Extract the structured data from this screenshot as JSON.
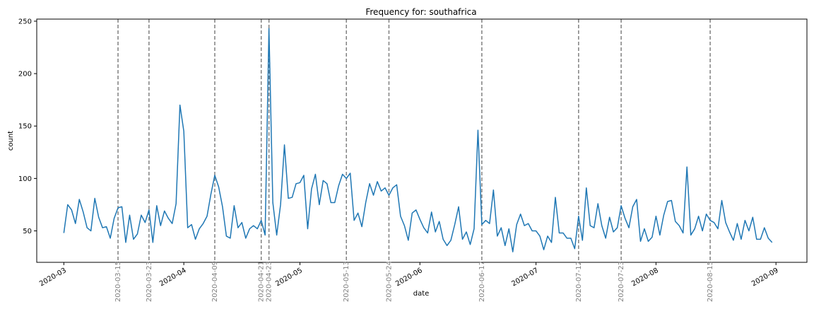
{
  "chart_data": {
    "type": "line",
    "title": "Frequency for: southafrica",
    "xlabel": "date",
    "ylabel": "count",
    "x_ticks": [
      "2020-03",
      "2020-04",
      "2020-05",
      "2020-06",
      "2020-07",
      "2020-08",
      "2020-09"
    ],
    "y_ticks": [
      50,
      100,
      150,
      200,
      250
    ],
    "ylim": [
      20,
      252
    ],
    "xlim": [
      "2020-02-23",
      "2020-09-09"
    ],
    "grid": false,
    "line_color": "#1f77b4",
    "marker_line_color": "#808080",
    "marker_dates": [
      "2020-03-15",
      "2020-03-23",
      "2020-04-09",
      "2020-04-21",
      "2020-04-23",
      "2020-05-13",
      "2020-05-24",
      "2020-06-17",
      "2020-07-12",
      "2020-07-23",
      "2020-08-15"
    ],
    "series": [
      {
        "x_start": "2020-03-01",
        "x_step": "1 day",
        "values": [
          48,
          75,
          70,
          57,
          80,
          68,
          53,
          50,
          81,
          63,
          53,
          54,
          43,
          62,
          72,
          73,
          39,
          65,
          42,
          47,
          65,
          58,
          70,
          39,
          74,
          55,
          69,
          62,
          57,
          76,
          170,
          145,
          53,
          56,
          42,
          52,
          57,
          64,
          85,
          103,
          92,
          73,
          45,
          43,
          74,
          53,
          58,
          43,
          52,
          55,
          52,
          60,
          46,
          243,
          77,
          46,
          75,
          132,
          81,
          82,
          95,
          96,
          103,
          52,
          90,
          104,
          75,
          98,
          95,
          77,
          77,
          93,
          104,
          100,
          105,
          60,
          67,
          54,
          77,
          95,
          84,
          97,
          88,
          91,
          84,
          91,
          94,
          64,
          55,
          41,
          67,
          70,
          61,
          53,
          48,
          68,
          49,
          59,
          42,
          36,
          41,
          56,
          73,
          42,
          49,
          37,
          52,
          146,
          56,
          60,
          57,
          89,
          45,
          53,
          36,
          52,
          30,
          56,
          66,
          55,
          57,
          50,
          50,
          45,
          32,
          45,
          39,
          82,
          48,
          48,
          43,
          43,
          33,
          64,
          41,
          91,
          55,
          53,
          76,
          55,
          43,
          63,
          49,
          53,
          74,
          62,
          53,
          73,
          80,
          40,
          52,
          40,
          44,
          64,
          46,
          65,
          78,
          79,
          59,
          55,
          48,
          111,
          46,
          52,
          64,
          50,
          66,
          60,
          58,
          52,
          79,
          58,
          49,
          41,
          57,
          42,
          60,
          50,
          63,
          42,
          42,
          53,
          43,
          39
        ]
      }
    ]
  }
}
